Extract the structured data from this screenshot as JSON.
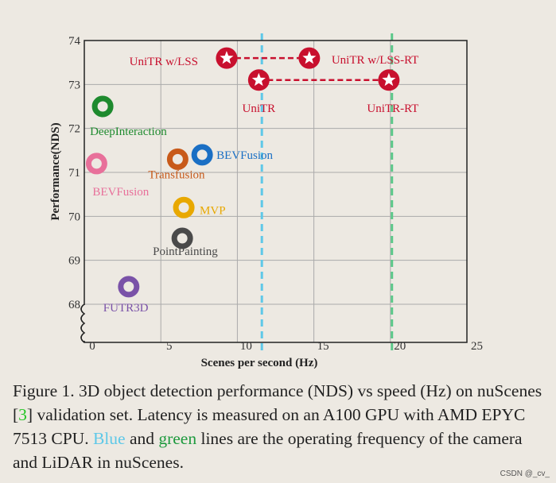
{
  "chart_data": {
    "type": "scatter",
    "xlabel": "Scenes per second (Hz)",
    "ylabel": "Performance(NDS)",
    "xlim": [
      0,
      25
    ],
    "ylim": [
      68,
      74
    ],
    "y_axis_break_below": 68,
    "xticks": [
      0,
      5,
      10,
      15,
      20,
      25
    ],
    "yticks": [
      68,
      69,
      70,
      71,
      72,
      73,
      74
    ],
    "grid": true,
    "points": [
      {
        "name": "UniTR w/LSS",
        "x": 9.3,
        "y": 73.6,
        "color": "#c8102e",
        "marker": "star"
      },
      {
        "name": "UniTR w/LSS-RT",
        "x": 14.7,
        "y": 73.6,
        "color": "#c8102e",
        "marker": "star"
      },
      {
        "name": "UniTR",
        "x": 11.4,
        "y": 73.1,
        "color": "#c8102e",
        "marker": "star"
      },
      {
        "name": "UniTR-RT",
        "x": 19.9,
        "y": 73.1,
        "color": "#c8102e",
        "marker": "star"
      },
      {
        "name": "DeepInteraction",
        "x": 1.2,
        "y": 72.5,
        "color": "#1e8a2e",
        "marker": "ring"
      },
      {
        "name": "BEVFusion",
        "x": 0.8,
        "y": 71.2,
        "color": "#e8709a",
        "marker": "ring"
      },
      {
        "name": "Transfusion",
        "x": 6.1,
        "y": 71.3,
        "color": "#c85a1a",
        "marker": "ring"
      },
      {
        "name": "BEVFusion",
        "x": 7.7,
        "y": 71.4,
        "color": "#1a6fc4",
        "marker": "ring"
      },
      {
        "name": "MVP",
        "x": 6.5,
        "y": 70.2,
        "color": "#e8a800",
        "marker": "ring"
      },
      {
        "name": "PointPainting",
        "x": 6.4,
        "y": 69.5,
        "color": "#4a4a4a",
        "marker": "ring"
      },
      {
        "name": "FUTR3D",
        "x": 2.9,
        "y": 68.4,
        "color": "#7a52a8",
        "marker": "ring"
      }
    ],
    "connections": [
      [
        0,
        1
      ],
      [
        2,
        3
      ]
    ],
    "vertical_lines": [
      {
        "x": 11.6,
        "color": "#5ec8e8",
        "style": "dashed"
      },
      {
        "x": 20.1,
        "color": "#5cc88a",
        "style": "dashed"
      }
    ]
  },
  "caption": {
    "part1": "Figure 1. 3D object detection performance (NDS) vs speed (Hz) on nuScenes [",
    "ref": "3",
    "part2": "] validation set. Latency is measured on an A100 GPU with AMD EPYC 7513 CPU. ",
    "blue": "Blue",
    "part3": " and ",
    "green": "green",
    "part4": " lines are the operating frequency of the camera and LiDAR in nuScenes.",
    "ref_color": "#22c522",
    "blue_color": "#5ec8e8",
    "green_color": "#1e9a3e"
  },
  "watermark": "CSDN @_cv_"
}
